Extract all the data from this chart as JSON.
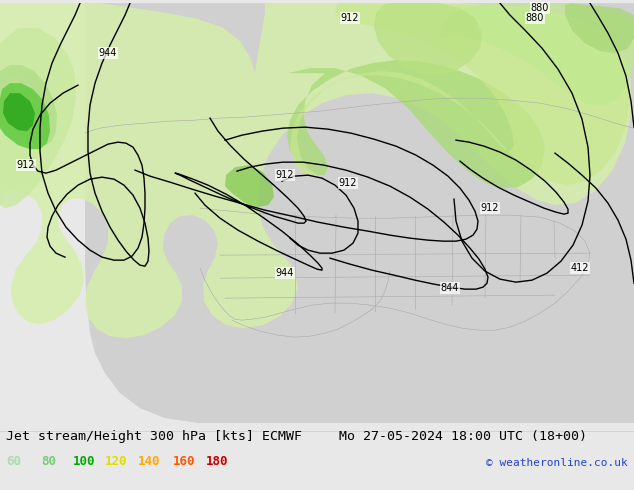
{
  "title_left": "Jet stream/Height 300 hPa [kts] ECMWF",
  "title_right": "Mo 27-05-2024 18:00 UTC (18+00)",
  "copyright": "© weatheronline.co.uk",
  "legend_values": [
    "60",
    "80",
    "100",
    "120",
    "140",
    "160",
    "180"
  ],
  "legend_colors": [
    "#aaddaa",
    "#77cc77",
    "#00aa00",
    "#dddd00",
    "#ffaa00",
    "#ff5500",
    "#cc0000"
  ],
  "bg_color": "#e8e8e8",
  "title_fontsize": 9.5,
  "legend_fontsize": 9,
  "copyright_fontsize": 8,
  "map_area": [
    0,
    0,
    634,
    420
  ],
  "ocean_color": "#e8e8e8",
  "land_color": "#cccccc",
  "green_light": "#cceeaa",
  "green_mid": "#99dd66",
  "green_dark": "#44bb22",
  "green_bright": "#22cc00",
  "border_color": "#888888"
}
